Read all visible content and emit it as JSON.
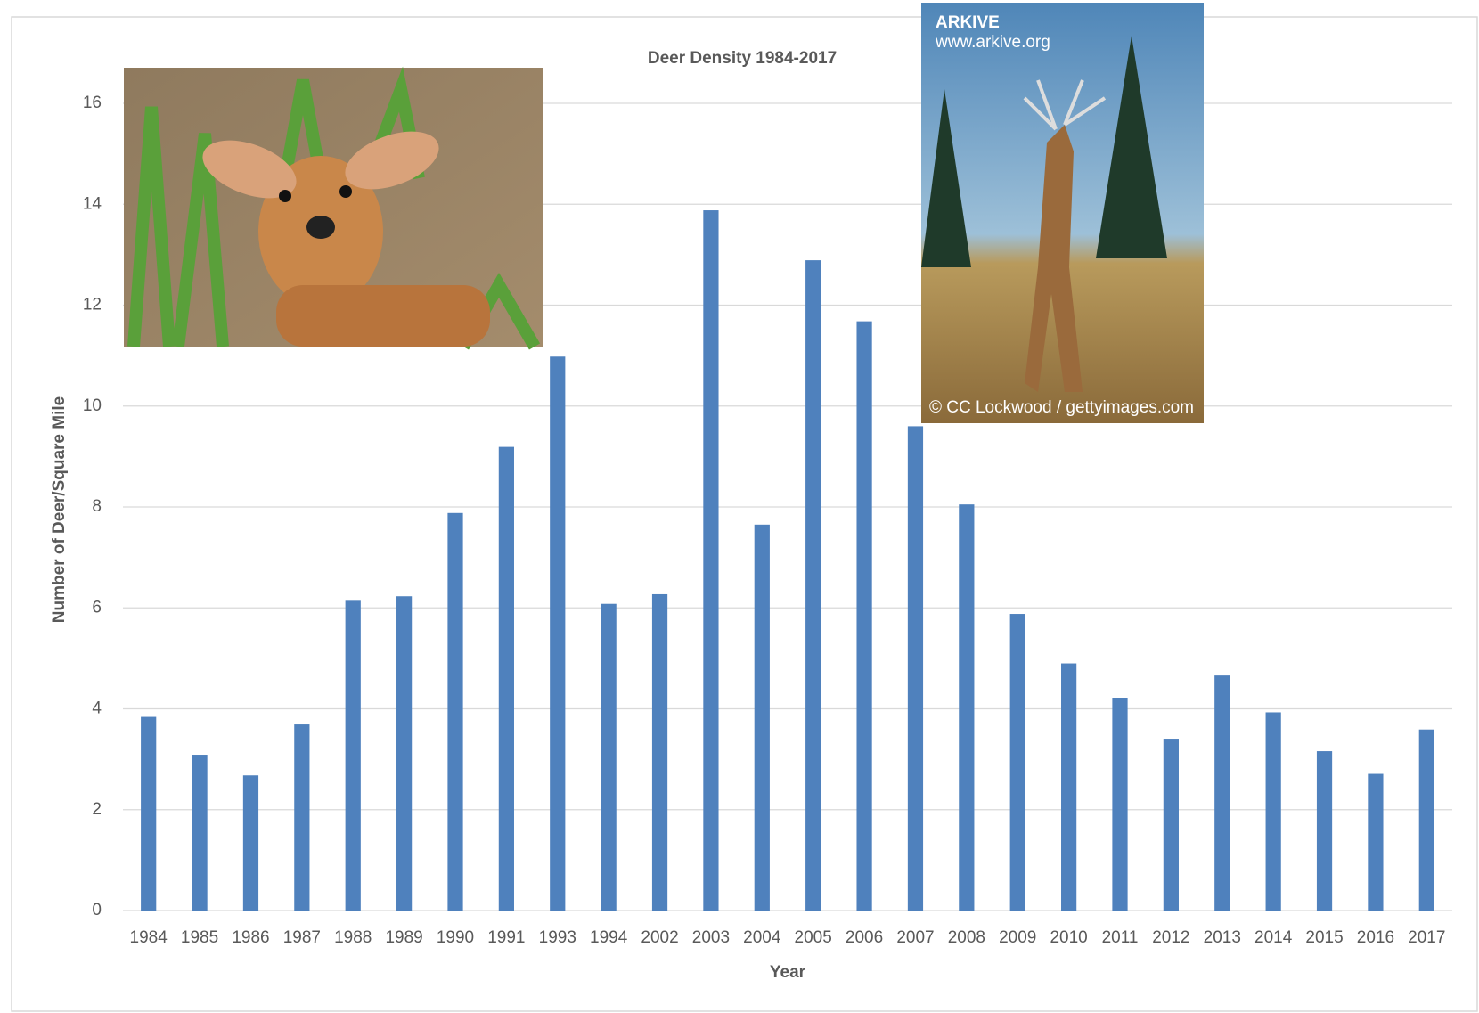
{
  "chart_data": {
    "type": "bar",
    "title": "Deer Density 1984-2017",
    "x_label": "Year",
    "y_label": "Number of Deer/Square Mile",
    "categories": [
      "1984",
      "1985",
      "1986",
      "1987",
      "1988",
      "1989",
      "1990",
      "1991",
      "1993",
      "1994",
      "2002",
      "2003",
      "2004",
      "2005",
      "2006",
      "2007",
      "2008",
      "2009",
      "2010",
      "2011",
      "2012",
      "2013",
      "2014",
      "2015",
      "2016",
      "2017"
    ],
    "values": [
      3.84,
      3.09,
      2.68,
      3.69,
      6.14,
      6.23,
      7.88,
      9.19,
      10.98,
      6.08,
      6.27,
      13.88,
      7.65,
      12.89,
      11.68,
      9.6,
      8.05,
      5.88,
      4.9,
      4.21,
      3.39,
      4.66,
      3.93,
      3.16,
      2.71,
      3.59
    ],
    "color": "#4f81bd",
    "ylim": [
      0,
      16
    ],
    "yticks": [
      0,
      2,
      4,
      6,
      8,
      10,
      12,
      14,
      16
    ],
    "grid": true,
    "photo_texts": [
      "ARKIVE",
      "www.arkive.org",
      "© CC Lockwood / gettyimages.com"
    ]
  }
}
